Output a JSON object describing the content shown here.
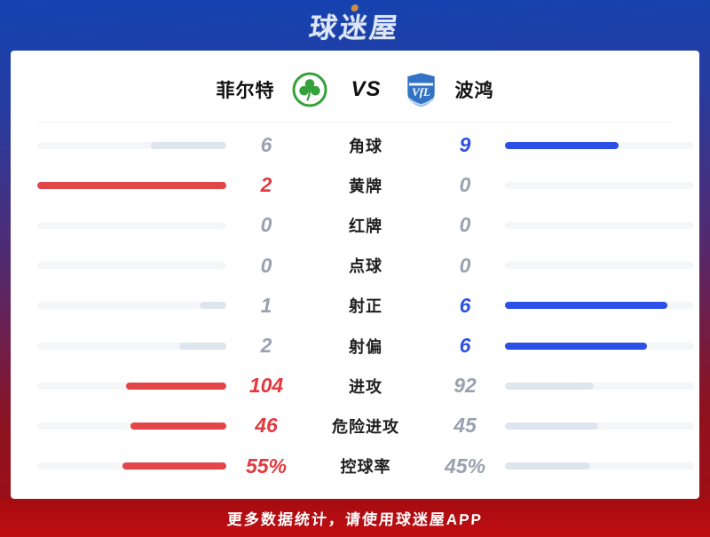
{
  "header": {
    "logo_text": "球迷屋"
  },
  "match": {
    "home_team": "菲尔特",
    "vs_label": "VS",
    "away_team": "波鸿",
    "away_logo_monogram": "VfL"
  },
  "stats": {
    "rows": [
      {
        "label": "角球",
        "home": "6",
        "away": "9",
        "home_pct": 40,
        "away_pct": 60,
        "home_state": "muted",
        "away_state": "away-win"
      },
      {
        "label": "黄牌",
        "home": "2",
        "away": "0",
        "home_pct": 100,
        "away_pct": 0,
        "home_state": "home-win",
        "away_state": "none"
      },
      {
        "label": "红牌",
        "home": "0",
        "away": "0",
        "home_pct": 0,
        "away_pct": 0,
        "home_state": "none",
        "away_state": "none"
      },
      {
        "label": "点球",
        "home": "0",
        "away": "0",
        "home_pct": 0,
        "away_pct": 0,
        "home_state": "none",
        "away_state": "none"
      },
      {
        "label": "射正",
        "home": "1",
        "away": "6",
        "home_pct": 14.3,
        "away_pct": 85.7,
        "home_state": "muted",
        "away_state": "away-win"
      },
      {
        "label": "射偏",
        "home": "2",
        "away": "6",
        "home_pct": 25,
        "away_pct": 75,
        "home_state": "muted",
        "away_state": "away-win"
      },
      {
        "label": "进攻",
        "home": "104",
        "away": "92",
        "home_pct": 53,
        "away_pct": 47,
        "home_state": "home-win",
        "away_state": "muted"
      },
      {
        "label": "危险进攻",
        "home": "46",
        "away": "45",
        "home_pct": 50.5,
        "away_pct": 49.5,
        "home_state": "home-win",
        "away_state": "muted"
      },
      {
        "label": "控球率",
        "home": "55%",
        "away": "45%",
        "home_pct": 55,
        "away_pct": 45,
        "home_state": "home-win",
        "away_state": "muted"
      }
    ]
  },
  "footer": {
    "text": "更多数据统计，请使用球迷屋APP"
  },
  "colors": {
    "home_accent": "#e23a40",
    "away_accent": "#2b51e3",
    "muted_fill": "#dfe5ef",
    "track": "#f5f6f8",
    "bg_top": "#1343b2",
    "bg_bottom": "#a80c10"
  }
}
